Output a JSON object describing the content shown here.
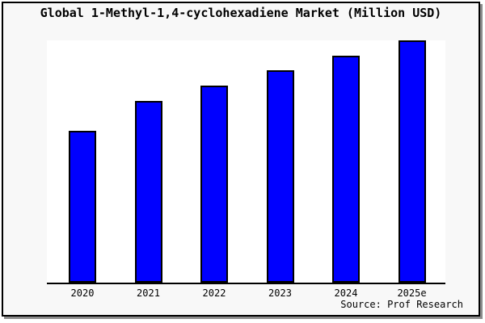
{
  "frame": {
    "background": "#f8f8f8",
    "border_color": "#000000",
    "shadow_color": "#8c8c8c",
    "plot_background": "#ffffff"
  },
  "chart_data": {
    "type": "bar",
    "title": "Global 1-Methyl-1,4-cyclohexadiene Market (Million USD)",
    "categories": [
      "2020",
      "2021",
      "2022",
      "2023",
      "2024",
      "2025e"
    ],
    "values": [
      188,
      225,
      244,
      263,
      281,
      300
    ],
    "values_note": "y-axis has no tick labels or gridlines; values are relative bar heights in px of the 300px-tall plot area",
    "xlabel": "",
    "ylabel": "",
    "ylim": [
      0,
      300
    ],
    "grid": false,
    "legend": null,
    "bar_color": "#0000ff",
    "bar_border_color": "#000000",
    "source_note": "Source: Prof Research"
  }
}
